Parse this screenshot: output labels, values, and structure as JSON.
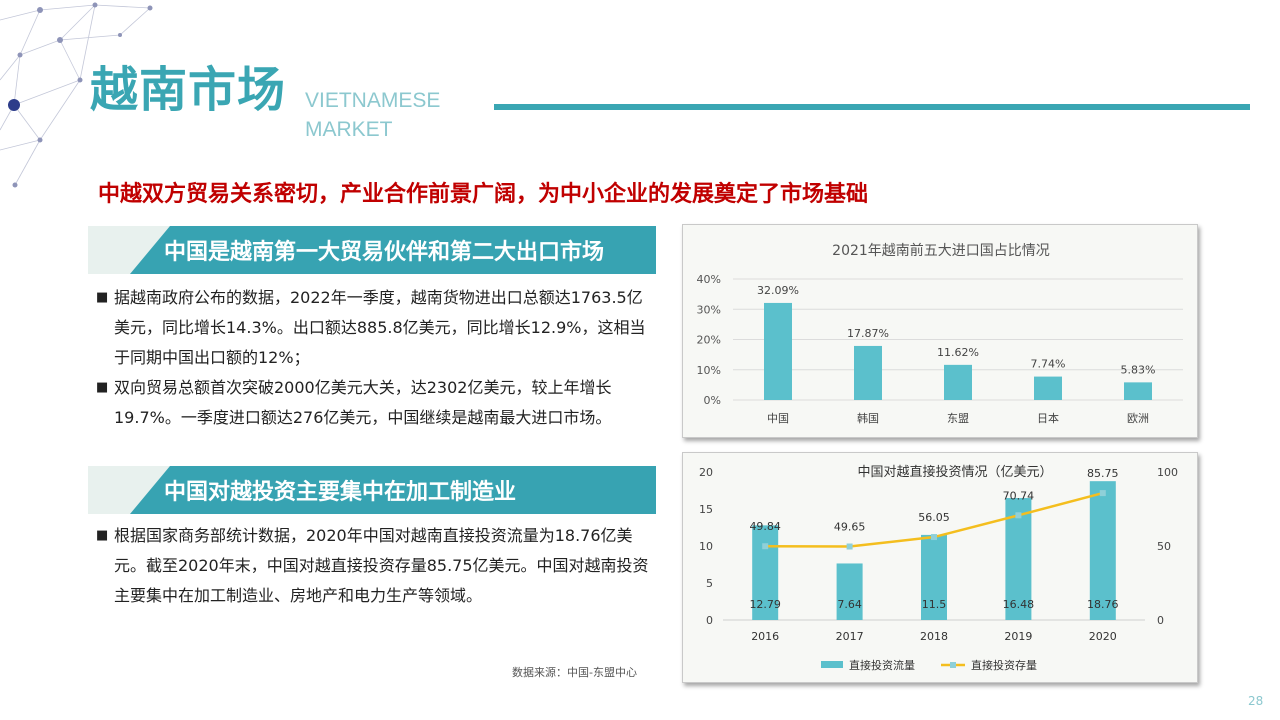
{
  "header": {
    "title_cn": "越南市场",
    "title_en_line1": "VIETNAMESE",
    "title_en_line2": "MARKET"
  },
  "headline": "中越双方贸易关系密切，产业合作前景广阔，为中小企业的发展奠定了市场基础",
  "section1": {
    "heading": "中国是越南第一大贸易伙伴和第二大出口市场",
    "bullets": [
      {
        "marker": "■",
        "text": "据越南政府公布的数据，2022年一季度，越南货物进出口总额达1763.5亿美元，同比增长14.3%。出口额达885.8亿美元，同比增长12.9%，这相当于同期中国出口额的12%；"
      },
      {
        "marker": "■",
        "text": "双向贸易总额首次突破2000亿美元大关，达2302亿美元，较上年增长19.7%。一季度进口额达276亿美元，中国继续是越南最大进口市场。"
      }
    ]
  },
  "section2": {
    "heading": "中国对越投资主要集中在加工制造业",
    "bullets": [
      {
        "marker": "■",
        "text": "根据国家商务部统计数据，2020年中国对越南直接投资流量为18.76亿美元。截至2020年末，中国对越直接投资存量85.75亿美元。中国对越南投资主要集中在加工制造业、房地产和电力生产等领域。"
      }
    ]
  },
  "source": "数据来源：中国-东盟中心",
  "page_number": "28",
  "colors": {
    "accent": "#3aa6b3",
    "bar": "#5bc0cc",
    "line": "#f4be1e",
    "headline": "#c00000"
  },
  "chart_data": [
    {
      "type": "bar",
      "title": "2021年越南前五大进口国占比情况",
      "categories": [
        "中国",
        "韩国",
        "东盟",
        "日本",
        "欧洲"
      ],
      "values": [
        32.09,
        17.87,
        11.62,
        7.74,
        5.83
      ],
      "value_labels": [
        "32.09%",
        "17.87%",
        "11.62%",
        "7.74%",
        "5.83%"
      ],
      "y_ticks": [
        "0%",
        "10%",
        "20%",
        "30%",
        "40%"
      ],
      "ylim": [
        0,
        40
      ],
      "grid": true
    },
    {
      "type": "bar",
      "title": "中国对越直接投资情况（亿美元）",
      "categories": [
        "2016",
        "2017",
        "2018",
        "2019",
        "2020"
      ],
      "series": [
        {
          "name": "直接投资流量",
          "type": "bar",
          "axis": "left",
          "values": [
            12.79,
            7.64,
            11.5,
            16.48,
            18.76
          ],
          "labels": [
            "12.79",
            "7.64",
            "11.5",
            "16.48",
            "18.76"
          ]
        },
        {
          "name": "直接投资存量",
          "type": "line",
          "axis": "right",
          "values": [
            49.84,
            49.65,
            56.05,
            70.74,
            85.75
          ],
          "labels": [
            "49.84",
            "49.65",
            "56.05",
            "70.74",
            "85.75"
          ]
        }
      ],
      "y_left_ticks": [
        "0",
        "5",
        "10",
        "15",
        "20"
      ],
      "ylim_left": [
        0,
        20
      ],
      "y_right_ticks": [
        "0",
        "50",
        "100"
      ],
      "ylim_right": [
        0,
        100
      ],
      "grid": false,
      "legend": "bottom"
    }
  ]
}
